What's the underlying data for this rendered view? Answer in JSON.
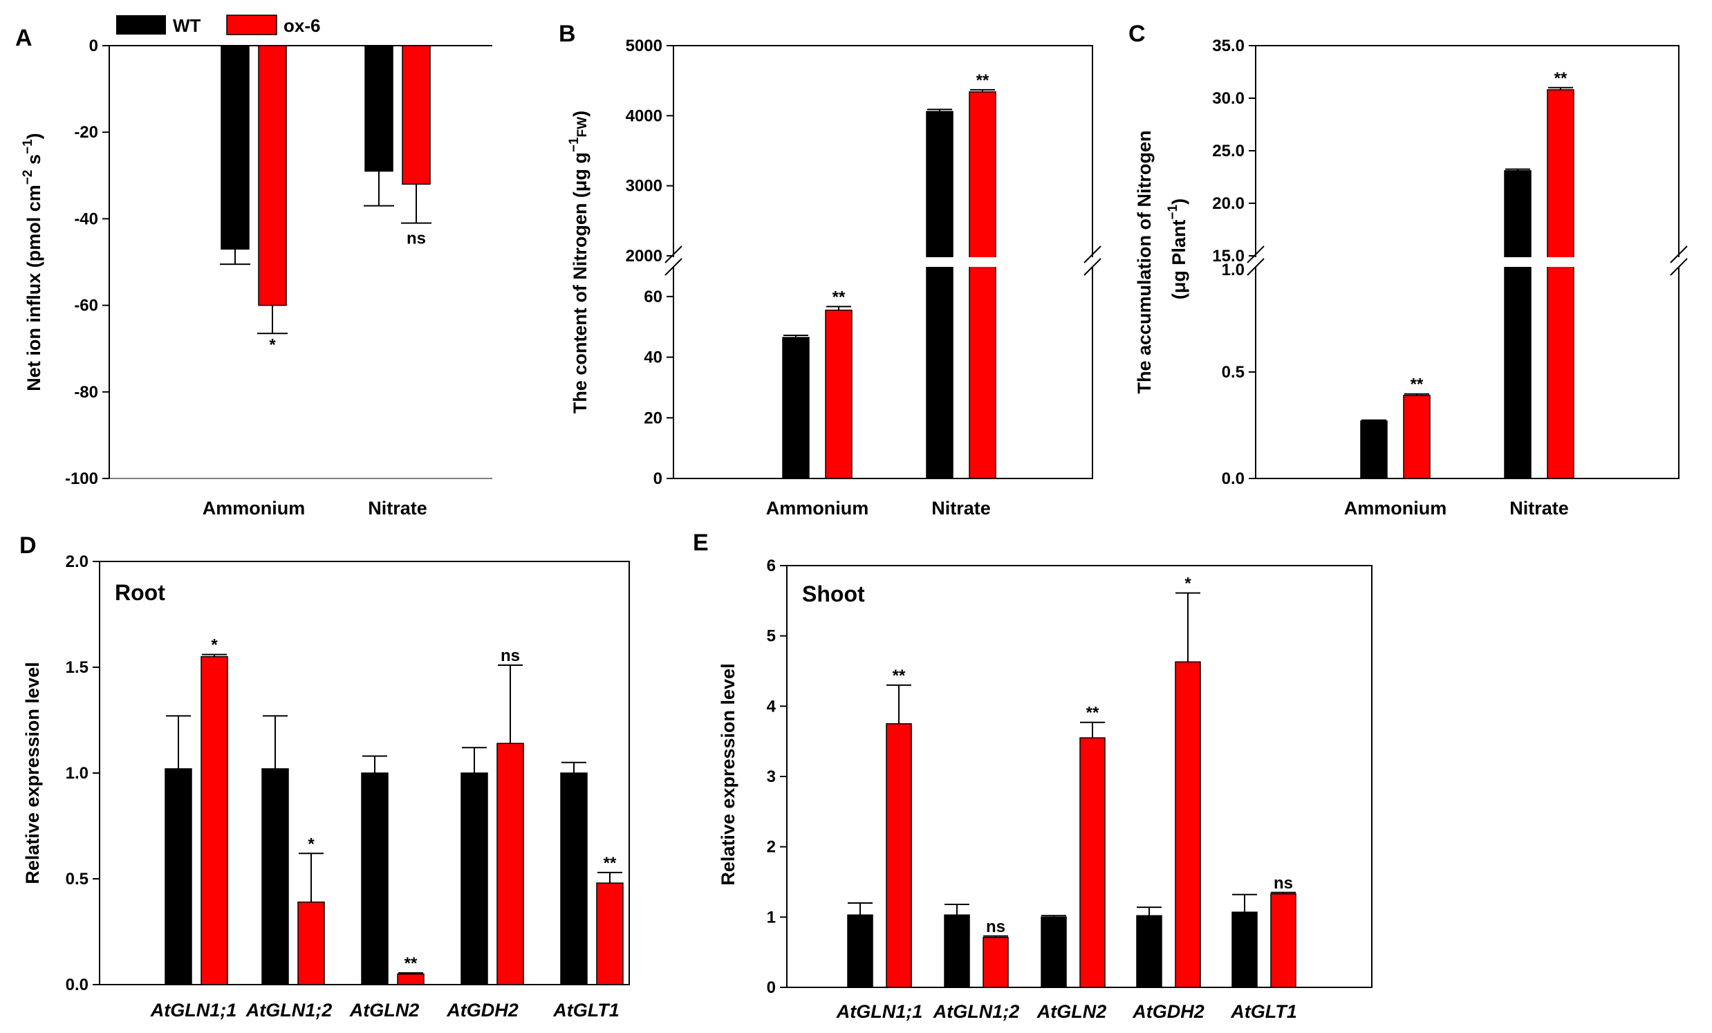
{
  "colors": {
    "WT": "#000000",
    "ox6": "#ff0000"
  },
  "legend": {
    "wt": "WT",
    "ox6": "ox-6"
  },
  "chart_data": [
    {
      "panel": "A",
      "type": "bar",
      "ylabel_main": "Net ion influx (pmol cm",
      "ylabel_sup1": "−2",
      "ylabel_mid": " s",
      "ylabel_sup2": "−1",
      "ylabel_end": ")",
      "ylim": [
        -100,
        0
      ],
      "yticks": [
        "0",
        "-20",
        "-40",
        "-60",
        "-80",
        "-100"
      ],
      "categories": [
        "Ammonium",
        "Nitrate"
      ],
      "series": [
        {
          "name": "WT",
          "values": [
            -47,
            -29
          ],
          "errors": [
            3.5,
            8
          ]
        },
        {
          "name": "ox-6",
          "values": [
            -60,
            -32
          ],
          "errors": [
            6.5,
            9
          ]
        }
      ],
      "annotations": [
        "*",
        "ns"
      ]
    },
    {
      "panel": "B",
      "type": "bar",
      "ylabel_main": "The content of Nitrogen (μg  g",
      "ylabel_sup": "−1",
      "ylabel_sub": "FW",
      "ylabel_end": ")",
      "axis_break": true,
      "ylim_lower": [
        0,
        70
      ],
      "ylim_upper": [
        2000,
        5000
      ],
      "yticks_upper": [
        "5000",
        "4000",
        "3000",
        "2000"
      ],
      "yticks_lower": [
        "60",
        "40",
        "20",
        "0"
      ],
      "categories": [
        "Ammonium",
        "Nitrate"
      ],
      "series": [
        {
          "name": "WT",
          "values": [
            46.5,
            4060
          ],
          "errors": [
            0.7,
            30
          ]
        },
        {
          "name": "ox-6",
          "values": [
            55.5,
            4340
          ],
          "errors": [
            1.2,
            30
          ]
        }
      ],
      "annotations": [
        "**",
        "**"
      ]
    },
    {
      "panel": "C",
      "type": "bar",
      "ylabel_main": "The accumulation of Nitrogen",
      "ylabel_line2": "(μg Plant",
      "ylabel_sup": "−1",
      "ylabel_end": ")",
      "axis_break": true,
      "ylim_lower": [
        0,
        1.0
      ],
      "ylim_upper": [
        15.0,
        35.0
      ],
      "yticks_upper": [
        "35.0",
        "30.0",
        "25.0",
        "20.0",
        "15.0"
      ],
      "yticks_lower": [
        "1.0",
        "0.5",
        "0.0"
      ],
      "categories": [
        "Ammonium",
        "Nitrate"
      ],
      "series": [
        {
          "name": "WT",
          "values": [
            0.27,
            23.1
          ],
          "errors": [
            0.004,
            0.15
          ]
        },
        {
          "name": "ox-6",
          "values": [
            0.39,
            30.8
          ],
          "errors": [
            0.007,
            0.2
          ]
        }
      ],
      "annotations": [
        "**",
        "**"
      ]
    },
    {
      "panel": "D",
      "type": "bar",
      "title": "Root",
      "ylabel": "Relative expression level",
      "ylim": [
        0,
        2.0
      ],
      "yticks": [
        "0.0",
        "0.5",
        "1.0",
        "1.5",
        "2.0"
      ],
      "categories": [
        "AtGLN1;1",
        "AtGLN1;2",
        "AtGLN2",
        "AtGDH2",
        "AtGLT1"
      ],
      "series": [
        {
          "name": "WT",
          "values": [
            1.02,
            1.02,
            1.0,
            1.0,
            1.0
          ],
          "errors": [
            0.25,
            0.25,
            0.08,
            0.12,
            0.05
          ]
        },
        {
          "name": "ox-6",
          "values": [
            1.55,
            0.39,
            0.05,
            1.14,
            0.48
          ],
          "errors": [
            0.01,
            0.23,
            0.005,
            0.37,
            0.05
          ]
        }
      ],
      "annotations": [
        "*",
        "*",
        "**",
        "ns",
        "**"
      ]
    },
    {
      "panel": "E",
      "type": "bar",
      "title": "Shoot",
      "ylabel": "Relative expression level",
      "ylim": [
        0,
        6
      ],
      "yticks": [
        "0",
        "1",
        "2",
        "3",
        "4",
        "5",
        "6"
      ],
      "categories": [
        "AtGLN1;1",
        "AtGLN1;2",
        "AtGLN2",
        "AtGDH2",
        "AtGLT1"
      ],
      "series": [
        {
          "name": "WT",
          "values": [
            1.03,
            1.03,
            1.0,
            1.02,
            1.07
          ],
          "errors": [
            0.17,
            0.15,
            0.02,
            0.12,
            0.25
          ]
        },
        {
          "name": "ox-6",
          "values": [
            3.75,
            0.71,
            3.55,
            4.63,
            1.33
          ],
          "errors": [
            0.55,
            0.02,
            0.22,
            0.98,
            0.02
          ]
        }
      ],
      "annotations": [
        "**",
        "ns",
        "**",
        "*",
        "ns"
      ]
    }
  ]
}
